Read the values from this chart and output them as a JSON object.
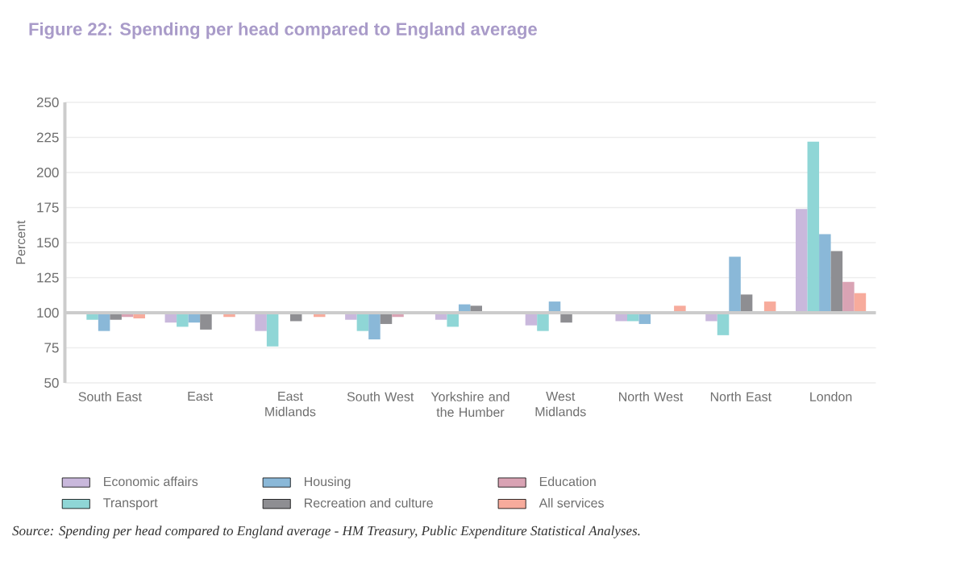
{
  "chart_data": {
    "type": "bar",
    "title": "Figure 22: Spending per head compared to England average",
    "ylabel": "Percent",
    "categories": [
      "South East",
      "East",
      "East Midlands",
      "South West",
      "Yorkshire and the Humber",
      "West Midlands",
      "North West",
      "North East",
      "London"
    ],
    "series": [
      {
        "name": "Economic affairs",
        "color": "#c9b8dc",
        "base": [
          100,
          100,
          100,
          100,
          100,
          100,
          100,
          100,
          100
        ],
        "values": [
          -1,
          -7,
          -13,
          -5,
          -5,
          -9,
          -6,
          -6,
          74
        ]
      },
      {
        "name": "Transport",
        "color": "#8fd6d6",
        "base": [
          100,
          100,
          100,
          100,
          100,
          100,
          100,
          100,
          100
        ],
        "values": [
          -5,
          -10,
          -24,
          -13,
          -10,
          -13,
          -6,
          -16,
          122
        ]
      },
      {
        "name": "Housing",
        "color": "#8ab8d8",
        "base": [
          100,
          100,
          null,
          100,
          100,
          100,
          100,
          100,
          100
        ],
        "values": [
          -13,
          -7,
          null,
          -19,
          6,
          8,
          -8,
          40,
          56
        ]
      },
      {
        "name": "Recreation and culture",
        "color": "#8e8e92",
        "base": [
          100,
          100,
          100,
          100,
          100,
          100,
          null,
          100,
          100
        ],
        "values": [
          -5,
          -12,
          -6,
          -8,
          5,
          -7,
          null,
          13,
          44
        ]
      },
      {
        "name": "Education",
        "color": "#d9a3b4",
        "base": [
          100,
          null,
          100,
          100,
          null,
          null,
          null,
          null,
          100
        ],
        "values": [
          -3,
          null,
          -1,
          -3,
          null,
          null,
          null,
          null,
          22
        ]
      },
      {
        "name": "All services",
        "color": "#f7ab9c",
        "base": [
          100,
          100,
          100,
          null,
          null,
          null,
          100,
          100,
          100
        ],
        "values": [
          -4,
          -3,
          -3,
          null,
          null,
          null,
          5,
          8,
          14
        ]
      }
    ],
    "ylim": [
      50,
      250
    ],
    "yticks": [
      50,
      75,
      100,
      125,
      150,
      175,
      200,
      225,
      250
    ],
    "grid": "y",
    "legend": "bottom",
    "ref_lines": [
      {
        "axis": "y",
        "value": 100,
        "color": "#cccccc"
      }
    ],
    "annotations": [
      "Source: Spending per head compared to England average - HM Treasury, Public Expenditure Statistical Analyses."
    ]
  }
}
